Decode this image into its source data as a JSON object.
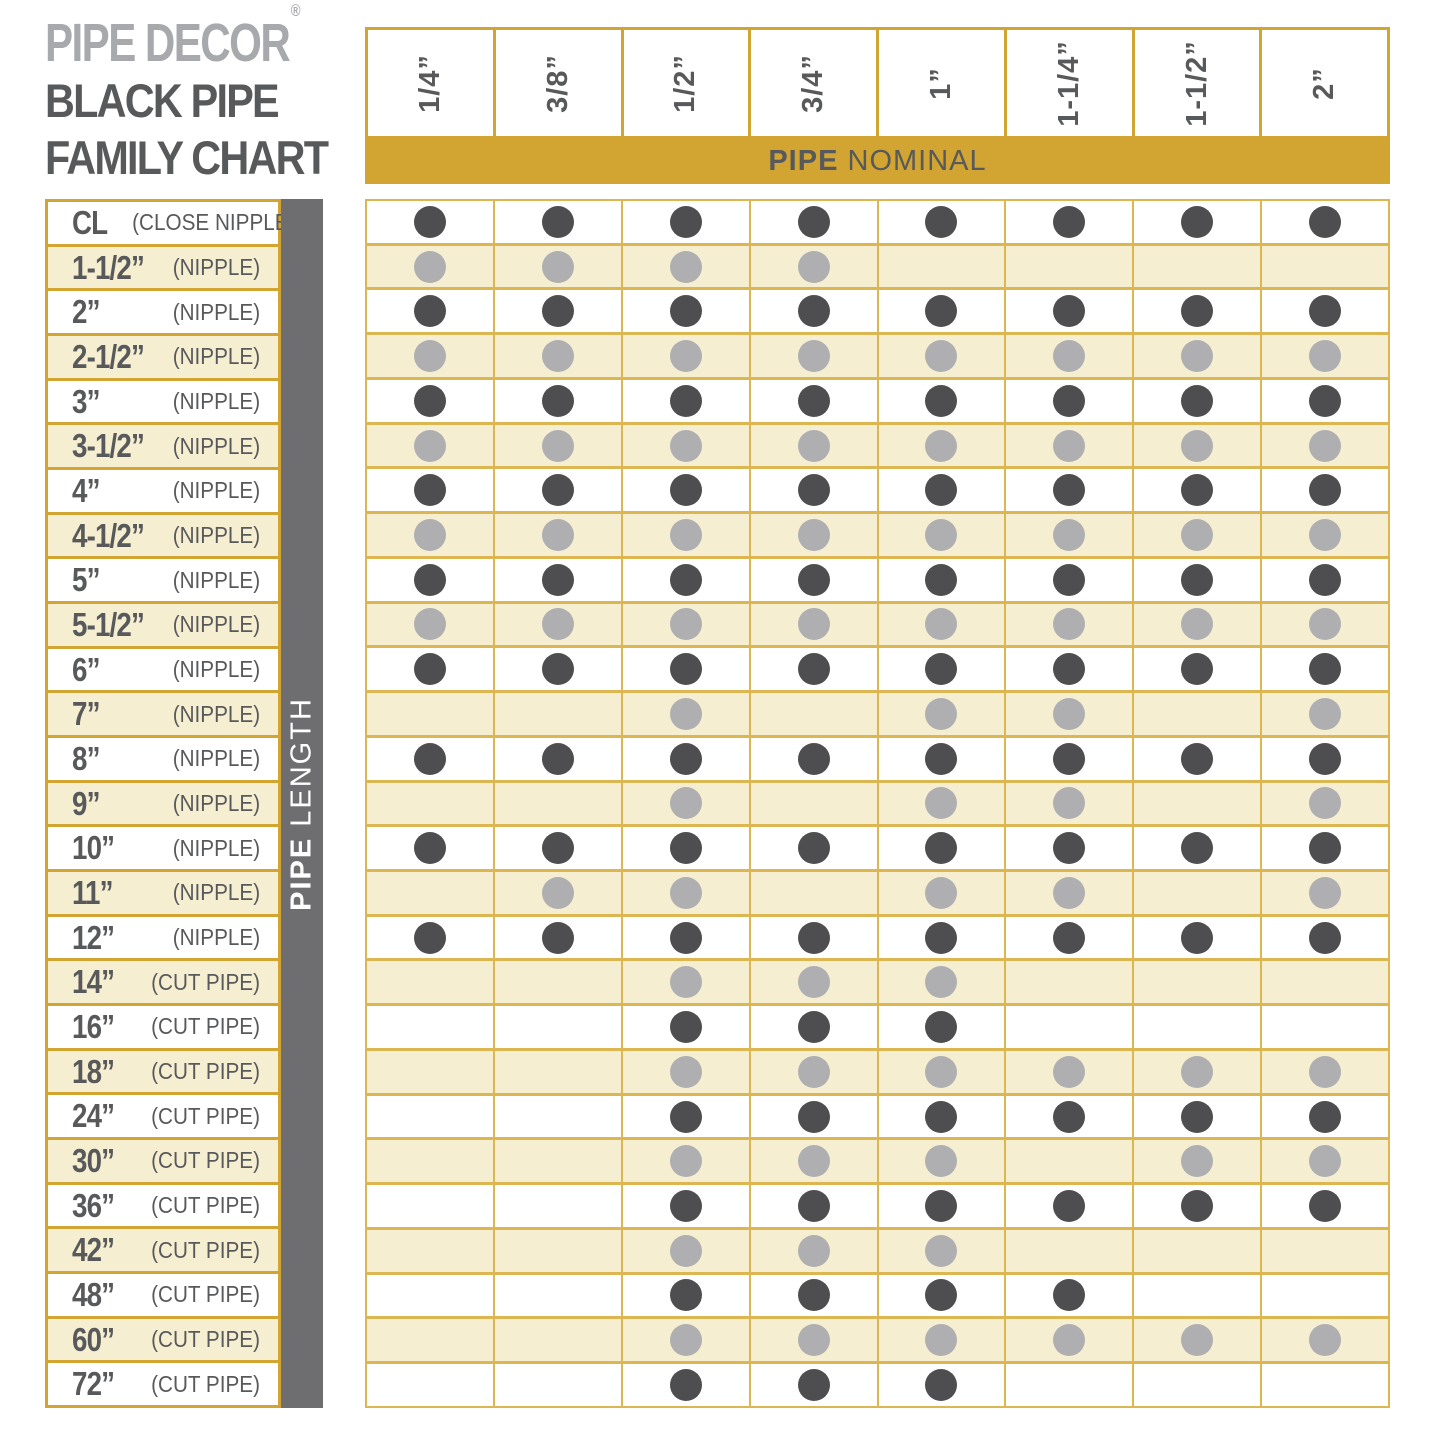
{
  "logo": {
    "brand": "PIPE DECOR",
    "registered": "®",
    "title_line1": "BLACK PIPE",
    "title_line2": "FAMILY CHART"
  },
  "top_band": {
    "bold": "PIPE",
    "rest": "NOMINAL"
  },
  "side_band": {
    "bold": "PIPE",
    "rest": "LENGTH"
  },
  "colors": {
    "gold": "#D2A532",
    "goldLine": "#DCB751",
    "cream": "#F6EED1",
    "textGray": "#58595B",
    "logoGray": "#A7A9AC",
    "grayBar": "#6E6E70",
    "dotDark": "#4E4E50",
    "dotLight": "#AFAFB1"
  },
  "chart_data": {
    "type": "table",
    "title": "PIPE DECOR® BLACK PIPE FAMILY CHART",
    "x_axis_label": "PIPE NOMINAL",
    "y_axis_label": "PIPE LENGTH",
    "columns": [
      "1/4”",
      "3/8”",
      "1/2”",
      "3/4”",
      "1”",
      "1-1/4”",
      "1-1/2”",
      "2”"
    ],
    "rows": [
      {
        "length": "CL",
        "kind": "(CLOSE NIPPLE)",
        "dots": [
          1,
          1,
          1,
          1,
          1,
          1,
          1,
          1
        ]
      },
      {
        "length": "1-1/2”",
        "kind": "(NIPPLE)",
        "dots": [
          1,
          1,
          1,
          1,
          0,
          0,
          0,
          0
        ]
      },
      {
        "length": "2”",
        "kind": "(NIPPLE)",
        "dots": [
          1,
          1,
          1,
          1,
          1,
          1,
          1,
          1
        ]
      },
      {
        "length": "2-1/2”",
        "kind": "(NIPPLE)",
        "dots": [
          1,
          1,
          1,
          1,
          1,
          1,
          1,
          1
        ]
      },
      {
        "length": "3”",
        "kind": "(NIPPLE)",
        "dots": [
          1,
          1,
          1,
          1,
          1,
          1,
          1,
          1
        ]
      },
      {
        "length": "3-1/2”",
        "kind": "(NIPPLE)",
        "dots": [
          1,
          1,
          1,
          1,
          1,
          1,
          1,
          1
        ]
      },
      {
        "length": "4”",
        "kind": "(NIPPLE)",
        "dots": [
          1,
          1,
          1,
          1,
          1,
          1,
          1,
          1
        ]
      },
      {
        "length": "4-1/2”",
        "kind": "(NIPPLE)",
        "dots": [
          1,
          1,
          1,
          1,
          1,
          1,
          1,
          1
        ]
      },
      {
        "length": "5”",
        "kind": "(NIPPLE)",
        "dots": [
          1,
          1,
          1,
          1,
          1,
          1,
          1,
          1
        ]
      },
      {
        "length": "5-1/2”",
        "kind": "(NIPPLE)",
        "dots": [
          1,
          1,
          1,
          1,
          1,
          1,
          1,
          1
        ]
      },
      {
        "length": "6”",
        "kind": "(NIPPLE)",
        "dots": [
          1,
          1,
          1,
          1,
          1,
          1,
          1,
          1
        ]
      },
      {
        "length": "7”",
        "kind": "(NIPPLE)",
        "dots": [
          0,
          0,
          1,
          0,
          1,
          1,
          0,
          1
        ]
      },
      {
        "length": "8”",
        "kind": "(NIPPLE)",
        "dots": [
          1,
          1,
          1,
          1,
          1,
          1,
          1,
          1
        ]
      },
      {
        "length": "9”",
        "kind": "(NIPPLE)",
        "dots": [
          0,
          0,
          1,
          0,
          1,
          1,
          0,
          1
        ]
      },
      {
        "length": "10”",
        "kind": "(NIPPLE)",
        "dots": [
          1,
          1,
          1,
          1,
          1,
          1,
          1,
          1
        ]
      },
      {
        "length": "11”",
        "kind": "(NIPPLE)",
        "dots": [
          0,
          1,
          1,
          0,
          1,
          1,
          0,
          1
        ]
      },
      {
        "length": "12”",
        "kind": "(NIPPLE)",
        "dots": [
          1,
          1,
          1,
          1,
          1,
          1,
          1,
          1
        ]
      },
      {
        "length": "14”",
        "kind": "(CUT PIPE)",
        "dots": [
          0,
          0,
          1,
          1,
          1,
          0,
          0,
          0
        ]
      },
      {
        "length": "16”",
        "kind": "(CUT PIPE)",
        "dots": [
          0,
          0,
          1,
          1,
          1,
          0,
          0,
          0
        ]
      },
      {
        "length": "18”",
        "kind": "(CUT PIPE)",
        "dots": [
          0,
          0,
          1,
          1,
          1,
          1,
          1,
          1
        ]
      },
      {
        "length": "24”",
        "kind": "(CUT PIPE)",
        "dots": [
          0,
          0,
          1,
          1,
          1,
          1,
          1,
          1
        ]
      },
      {
        "length": "30”",
        "kind": "(CUT PIPE)",
        "dots": [
          0,
          0,
          1,
          1,
          1,
          0,
          1,
          1
        ]
      },
      {
        "length": "36”",
        "kind": "(CUT PIPE)",
        "dots": [
          0,
          0,
          1,
          1,
          1,
          1,
          1,
          1
        ]
      },
      {
        "length": "42”",
        "kind": "(CUT PIPE)",
        "dots": [
          0,
          0,
          1,
          1,
          1,
          0,
          0,
          0
        ]
      },
      {
        "length": "48”",
        "kind": "(CUT PIPE)",
        "dots": [
          0,
          0,
          1,
          1,
          1,
          1,
          0,
          0
        ]
      },
      {
        "length": "60”",
        "kind": "(CUT PIPE)",
        "dots": [
          0,
          0,
          1,
          1,
          1,
          1,
          1,
          1
        ]
      },
      {
        "length": "72”",
        "kind": "(CUT PIPE)",
        "dots": [
          0,
          0,
          1,
          1,
          1,
          0,
          0,
          0
        ]
      }
    ]
  }
}
